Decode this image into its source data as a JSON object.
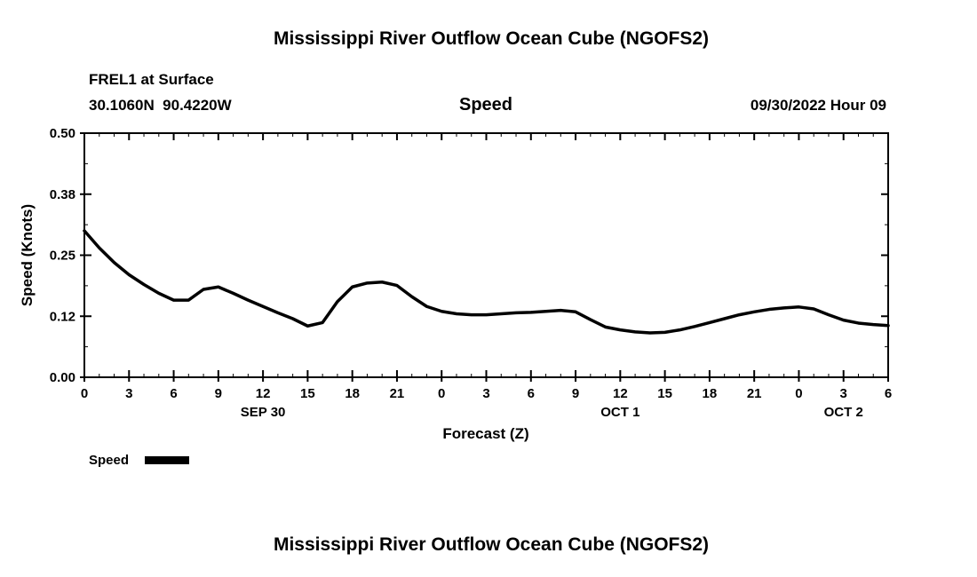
{
  "page": {
    "top_title": "Mississippi River Outflow Ocean Cube (NGOFS2)",
    "bottom_title": "Mississippi River Outflow Ocean Cube (NGOFS2)"
  },
  "header": {
    "station": "FREL1 at Surface",
    "coordinates": "30.1060N  90.4220W",
    "plot_title": "Speed",
    "datetime": "09/30/2022 Hour 09"
  },
  "legend": {
    "label": "Speed",
    "color": "#000000"
  },
  "chart_data": {
    "type": "line",
    "title": "Speed",
    "xlabel": "Forecast (Z)",
    "ylabel": "Speed (Knots)",
    "grid": false,
    "legend_position": "bottom-left",
    "line_color": "#000000",
    "xlim": [
      0,
      54
    ],
    "ylim": [
      0,
      0.5
    ],
    "x_hours": [
      0,
      1,
      2,
      3,
      4,
      5,
      6,
      7,
      8,
      9,
      10,
      11,
      12,
      13,
      14,
      15,
      16,
      17,
      18,
      19,
      20,
      21,
      22,
      23,
      24,
      25,
      26,
      27,
      28,
      29,
      30,
      31,
      32,
      33,
      34,
      35,
      36,
      37,
      38,
      39,
      40,
      41,
      42,
      43,
      44,
      45,
      46,
      47,
      48,
      49,
      50,
      51,
      52,
      53,
      54
    ],
    "values": [
      0.3,
      0.265,
      0.235,
      0.21,
      0.19,
      0.172,
      0.158,
      0.158,
      0.18,
      0.185,
      0.172,
      0.158,
      0.145,
      0.132,
      0.12,
      0.105,
      0.112,
      0.155,
      0.185,
      0.193,
      0.195,
      0.188,
      0.165,
      0.145,
      0.135,
      0.13,
      0.128,
      0.128,
      0.13,
      0.132,
      0.133,
      0.135,
      0.137,
      0.134,
      0.118,
      0.103,
      0.097,
      0.093,
      0.091,
      0.092,
      0.097,
      0.104,
      0.112,
      0.12,
      0.128,
      0.134,
      0.139,
      0.142,
      0.144,
      0.14,
      0.128,
      0.117,
      0.111,
      0.108,
      0.106
    ],
    "x_tick_positions": [
      0,
      3,
      6,
      9,
      12,
      15,
      18,
      21,
      24,
      27,
      30,
      33,
      36,
      39,
      42,
      45,
      48,
      51,
      54
    ],
    "x_tick_labels": [
      "0",
      "3",
      "6",
      "9",
      "12",
      "15",
      "18",
      "21",
      "0",
      "3",
      "6",
      "9",
      "12",
      "15",
      "18",
      "21",
      "0",
      "3",
      "6"
    ],
    "y_ticks": [
      {
        "label": "0.00",
        "value": 0
      },
      {
        "label": "0.12",
        "value": 0.125
      },
      {
        "label": "0.25",
        "value": 0.25
      },
      {
        "label": "0.38",
        "value": 0.375
      },
      {
        "label": "0.50",
        "value": 0.5
      }
    ],
    "date_labels": [
      {
        "pos": 12,
        "label": "SEP 30"
      },
      {
        "pos": 36,
        "label": "OCT 1"
      },
      {
        "pos": 51,
        "label": "OCT 2"
      }
    ]
  }
}
